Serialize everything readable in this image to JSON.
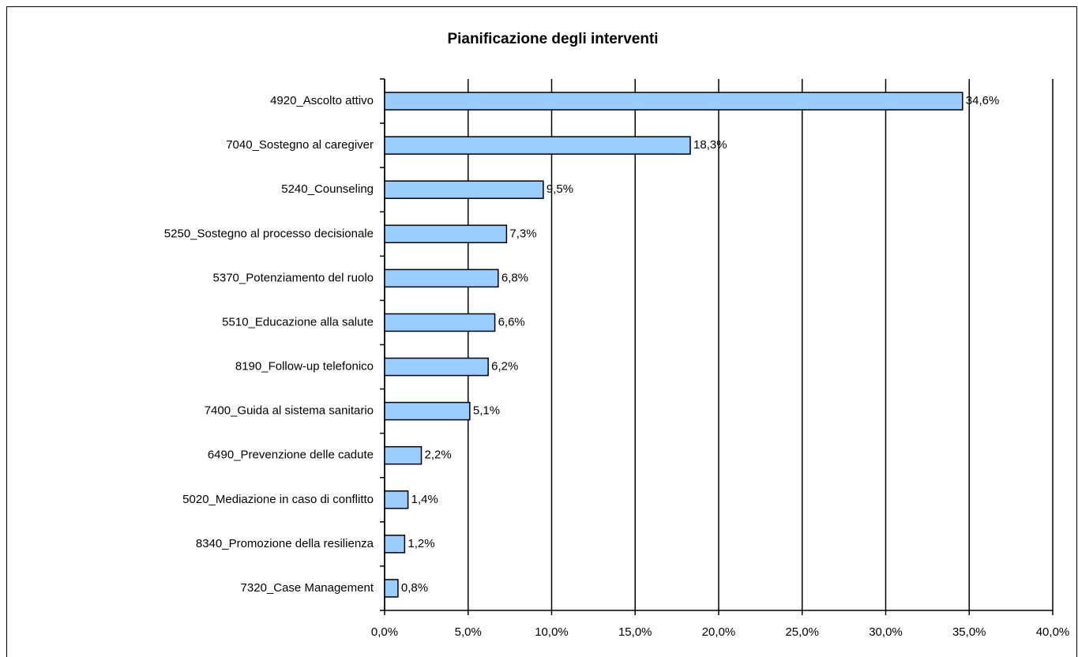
{
  "chart_data": {
    "type": "bar",
    "orientation": "horizontal",
    "title": "Pianificazione degli interventi",
    "categories": [
      "4920_Ascolto attivo",
      "7040_Sostegno al caregiver",
      "5240_Counseling",
      "5250_Sostegno al processo decisionale",
      "5370_Potenziamento del ruolo",
      "5510_Educazione alla salute",
      "8190_Follow-up telefonico",
      "7400_Guida al sistema sanitario",
      "6490_Prevenzione delle cadute",
      "5020_Mediazione in caso di conflitto",
      "8340_Promozione della resilienza",
      "7320_Case Management"
    ],
    "values": [
      34.6,
      18.3,
      9.5,
      7.3,
      6.8,
      6.6,
      6.2,
      5.1,
      2.2,
      1.4,
      1.2,
      0.8
    ],
    "value_labels": [
      "34,6%",
      "18,3%",
      "9,5%",
      "7,3%",
      "6,8%",
      "6,6%",
      "6,2%",
      "5,1%",
      "2,2%",
      "1,4%",
      "1,2%",
      "0,8%"
    ],
    "color": "#99ccff",
    "xlim": [
      0,
      40
    ],
    "xticks": [
      {
        "value": 0,
        "label": "0,0%"
      },
      {
        "value": 5,
        "label": "5,0%"
      },
      {
        "value": 10,
        "label": "10,0%"
      },
      {
        "value": 15,
        "label": "15,0%"
      },
      {
        "value": 20,
        "label": "20,0%"
      },
      {
        "value": 25,
        "label": "25,0%"
      },
      {
        "value": 30,
        "label": "30,0%"
      },
      {
        "value": 35,
        "label": "35,0%"
      },
      {
        "value": 40,
        "label": "40,0%"
      }
    ],
    "grid": true
  }
}
